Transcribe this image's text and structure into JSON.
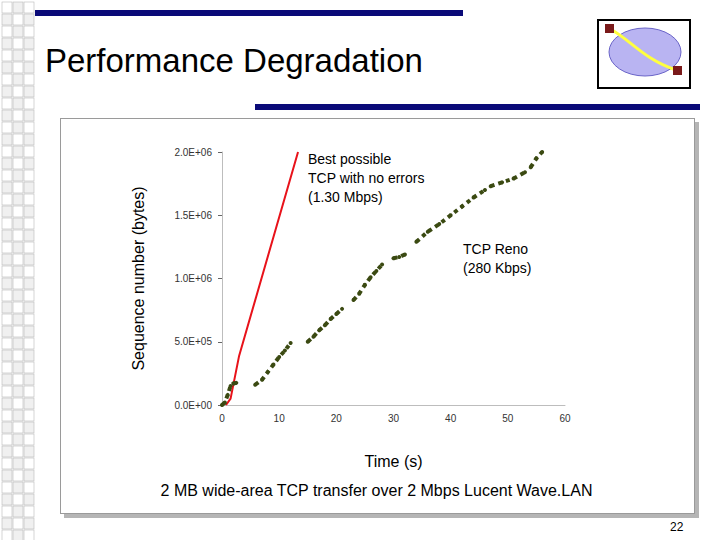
{
  "title": "Performance Degradation",
  "page_number": 22,
  "chart_data": {
    "type": "line",
    "x_label": "Time (s)",
    "y_label": "Sequence number (bytes)",
    "caption": "2 MB wide-area TCP transfer over 2 Mbps Lucent Wave.LAN",
    "xlim": [
      0,
      60
    ],
    "xticks": [
      0,
      10,
      20,
      30,
      40,
      50,
      60
    ],
    "ylim": [
      0,
      2000000
    ],
    "yticks": [
      {
        "value": 0,
        "label": "0.0E+00"
      },
      {
        "value": 500000,
        "label": "5.0E+05"
      },
      {
        "value": 1000000,
        "label": "1.0E+06"
      },
      {
        "value": 1500000,
        "label": "1.5E+06"
      },
      {
        "value": 2000000,
        "label": "2.0E+06"
      }
    ],
    "grid": false,
    "series": [
      {
        "name": "Best possible\nTCP with no errors\n(1.30 Mbps)",
        "color": "#e8121a",
        "line_style": "solid",
        "x": [
          0.7,
          1.5,
          3.0,
          13.3
        ],
        "values": [
          0,
          50000,
          390000,
          2000000
        ]
      },
      {
        "name": "TCP Reno\n(280 Kbps)",
        "color": "#3b4a12",
        "line_style": "dotted",
        "marker": "circle",
        "x": [
          0,
          0.5,
          1,
          1.5,
          2,
          2.5,
          4,
          5.8,
          7,
          8,
          9,
          10,
          11,
          12,
          13.5,
          15,
          16,
          17,
          18,
          19,
          20,
          21,
          22,
          23,
          24,
          25,
          26,
          27,
          28,
          29,
          30,
          31,
          32,
          33,
          34,
          36,
          38,
          40,
          42,
          44,
          46,
          46.5,
          47,
          49,
          51,
          53,
          53.5,
          54,
          55,
          56
        ],
        "values": [
          0,
          20000,
          80000,
          150000,
          170000,
          175000,
          null,
          160000,
          200000,
          260000,
          320000,
          380000,
          430000,
          490000,
          null,
          500000,
          540000,
          590000,
          630000,
          680000,
          720000,
          760000,
          null,
          830000,
          880000,
          950000,
          1010000,
          1060000,
          1110000,
          null,
          1160000,
          1170000,
          1190000,
          null,
          1290000,
          1370000,
          1430000,
          1500000,
          1570000,
          1640000,
          1700000,
          null,
          1730000,
          1760000,
          1790000,
          1840000,
          null,
          1880000,
          1950000,
          2000000
        ]
      }
    ]
  }
}
